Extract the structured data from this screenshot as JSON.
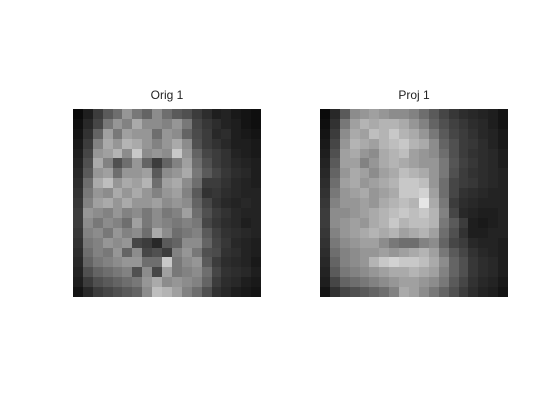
{
  "figure": {
    "panels": [
      {
        "title": "Orig 1",
        "grayscale_rows": [
          [
            10,
            30,
            60,
            90,
            110,
            150,
            120,
            100,
            140,
            110,
            90,
            80,
            60,
            45,
            30,
            35,
            25,
            20,
            15
          ],
          [
            15,
            40,
            70,
            120,
            150,
            130,
            170,
            140,
            140,
            130,
            150,
            120,
            70,
            55,
            45,
            35,
            30,
            20,
            15
          ],
          [
            20,
            50,
            100,
            160,
            120,
            160,
            150,
            150,
            110,
            150,
            140,
            100,
            75,
            60,
            40,
            45,
            30,
            25,
            20
          ],
          [
            25,
            60,
            130,
            170,
            150,
            180,
            170,
            150,
            130,
            150,
            170,
            140,
            80,
            60,
            50,
            40,
            30,
            30,
            25
          ],
          [
            30,
            70,
            150,
            160,
            180,
            140,
            200,
            140,
            150,
            140,
            200,
            150,
            100,
            70,
            60,
            50,
            35,
            30,
            25
          ],
          [
            35,
            80,
            170,
            130,
            80,
            110,
            150,
            100,
            60,
            100,
            130,
            160,
            110,
            80,
            60,
            50,
            40,
            35,
            30
          ],
          [
            40,
            90,
            150,
            160,
            110,
            150,
            150,
            160,
            90,
            140,
            150,
            170,
            120,
            90,
            70,
            55,
            45,
            40,
            30
          ],
          [
            45,
            110,
            170,
            190,
            150,
            170,
            160,
            180,
            110,
            160,
            170,
            140,
            110,
            60,
            60,
            50,
            40,
            35,
            30
          ],
          [
            50,
            120,
            150,
            140,
            170,
            150,
            170,
            150,
            130,
            150,
            160,
            130,
            90,
            50,
            55,
            45,
            40,
            35,
            35
          ],
          [
            55,
            130,
            160,
            170,
            150,
            170,
            150,
            150,
            160,
            140,
            150,
            140,
            100,
            70,
            50,
            40,
            35,
            40,
            35
          ],
          [
            60,
            150,
            140,
            130,
            150,
            130,
            140,
            120,
            140,
            120,
            130,
            160,
            110,
            80,
            60,
            50,
            40,
            35,
            35
          ],
          [
            60,
            140,
            120,
            140,
            130,
            110,
            160,
            120,
            140,
            130,
            120,
            130,
            120,
            70,
            55,
            45,
            40,
            30,
            35
          ],
          [
            55,
            130,
            140,
            120,
            150,
            130,
            140,
            110,
            170,
            140,
            110,
            120,
            130,
            90,
            65,
            50,
            45,
            40,
            35
          ],
          [
            50,
            120,
            130,
            150,
            140,
            150,
            70,
            60,
            40,
            90,
            100,
            140,
            140,
            100,
            70,
            55,
            40,
            35,
            30
          ],
          [
            45,
            110,
            130,
            120,
            150,
            100,
            140,
            70,
            80,
            60,
            130,
            150,
            120,
            80,
            75,
            50,
            45,
            35,
            30
          ],
          [
            40,
            100,
            120,
            130,
            140,
            150,
            150,
            110,
            110,
            200,
            120,
            140,
            150,
            90,
            60,
            45,
            40,
            35,
            25
          ],
          [
            35,
            80,
            100,
            110,
            120,
            130,
            80,
            140,
            70,
            160,
            120,
            130,
            140,
            110,
            70,
            50,
            45,
            40,
            30
          ],
          [
            30,
            60,
            80,
            90,
            100,
            110,
            120,
            150,
            170,
            140,
            150,
            140,
            130,
            100,
            60,
            45,
            40,
            30,
            25
          ],
          [
            20,
            40,
            60,
            70,
            80,
            90,
            100,
            140,
            190,
            180,
            160,
            130,
            110,
            80,
            50,
            40,
            30,
            25,
            20
          ]
        ]
      },
      {
        "title": "Proj 1",
        "grayscale_rows": [
          [
            10,
            40,
            90,
            140,
            150,
            160,
            150,
            140,
            140,
            130,
            110,
            90,
            70,
            55,
            45,
            40,
            35,
            30,
            20
          ],
          [
            15,
            50,
            120,
            160,
            180,
            170,
            180,
            180,
            170,
            150,
            130,
            100,
            80,
            65,
            55,
            45,
            40,
            30,
            20
          ],
          [
            20,
            60,
            140,
            170,
            160,
            190,
            180,
            200,
            180,
            170,
            150,
            120,
            90,
            70,
            60,
            50,
            40,
            35,
            25
          ],
          [
            25,
            70,
            150,
            180,
            170,
            160,
            180,
            190,
            200,
            180,
            170,
            140,
            100,
            80,
            60,
            55,
            45,
            35,
            25
          ],
          [
            30,
            80,
            160,
            170,
            150,
            140,
            170,
            180,
            190,
            160,
            150,
            140,
            110,
            80,
            60,
            50,
            45,
            40,
            30
          ],
          [
            35,
            90,
            160,
            160,
            130,
            150,
            170,
            180,
            170,
            160,
            150,
            150,
            120,
            85,
            65,
            55,
            45,
            40,
            30
          ],
          [
            40,
            100,
            150,
            170,
            160,
            140,
            160,
            170,
            190,
            180,
            170,
            150,
            120,
            80,
            60,
            50,
            45,
            40,
            35
          ],
          [
            45,
            110,
            160,
            170,
            150,
            160,
            170,
            180,
            200,
            200,
            190,
            150,
            110,
            70,
            60,
            55,
            45,
            40,
            35
          ],
          [
            50,
            120,
            150,
            160,
            170,
            150,
            160,
            170,
            200,
            200,
            210,
            160,
            110,
            70,
            50,
            45,
            40,
            35,
            35
          ],
          [
            55,
            130,
            150,
            150,
            160,
            150,
            170,
            180,
            190,
            180,
            230,
            170,
            120,
            60,
            45,
            40,
            35,
            35,
            35
          ],
          [
            60,
            140,
            140,
            150,
            160,
            170,
            180,
            190,
            200,
            190,
            200,
            180,
            130,
            70,
            40,
            35,
            30,
            30,
            35
          ],
          [
            60,
            140,
            150,
            160,
            150,
            170,
            180,
            200,
            180,
            190,
            190,
            180,
            120,
            90,
            60,
            30,
            25,
            30,
            35
          ],
          [
            55,
            130,
            150,
            160,
            170,
            180,
            170,
            180,
            160,
            170,
            180,
            160,
            110,
            80,
            50,
            30,
            30,
            35,
            35
          ],
          [
            50,
            120,
            140,
            150,
            160,
            160,
            140,
            120,
            110,
            110,
            130,
            140,
            100,
            70,
            60,
            40,
            35,
            35,
            30
          ],
          [
            45,
            110,
            130,
            140,
            150,
            150,
            160,
            150,
            160,
            170,
            180,
            160,
            120,
            90,
            70,
            50,
            40,
            35,
            30
          ],
          [
            40,
            100,
            130,
            140,
            150,
            180,
            200,
            210,
            200,
            200,
            190,
            170,
            140,
            100,
            80,
            55,
            45,
            40,
            30
          ],
          [
            35,
            90,
            120,
            130,
            140,
            150,
            160,
            170,
            170,
            180,
            170,
            160,
            130,
            100,
            80,
            55,
            45,
            40,
            30
          ],
          [
            30,
            70,
            100,
            110,
            120,
            130,
            140,
            150,
            160,
            160,
            150,
            140,
            120,
            90,
            70,
            50,
            40,
            35,
            25
          ],
          [
            20,
            50,
            70,
            80,
            90,
            100,
            110,
            130,
            170,
            160,
            140,
            120,
            100,
            80,
            60,
            45,
            35,
            30,
            20
          ]
        ]
      }
    ]
  }
}
